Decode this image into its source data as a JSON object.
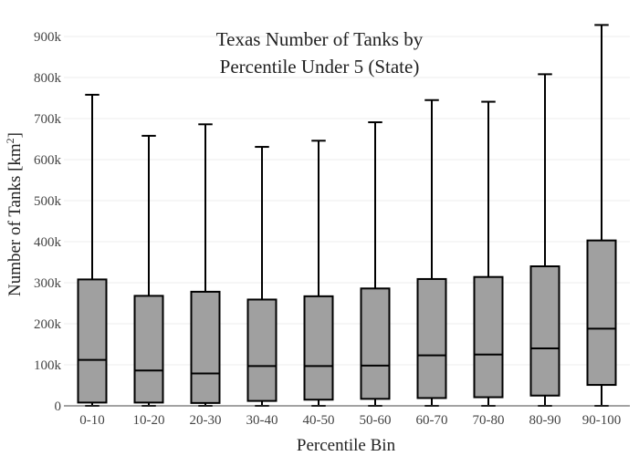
{
  "chart_data": {
    "type": "box",
    "title_lines": [
      "Texas Number of Tanks by",
      "Percentile Under 5 (State)"
    ],
    "xlabel": "Percentile Bin",
    "ylabel_main": "Number of Tanks  [km",
    "ylabel_sup": "2",
    "ylabel_end": "]",
    "ylim": [
      0,
      900000
    ],
    "y_ticks": [
      0,
      100000,
      200000,
      300000,
      400000,
      500000,
      600000,
      700000,
      800000,
      900000
    ],
    "y_tick_labels": [
      "0",
      "100k",
      "200k",
      "300k",
      "400k",
      "500k",
      "600k",
      "700k",
      "800k",
      "900k"
    ],
    "categories": [
      "0-10",
      "10-20",
      "20-30",
      "30-40",
      "40-50",
      "50-60",
      "60-70",
      "70-80",
      "80-90",
      "90-100"
    ],
    "box_color": "#a0a0a0",
    "grid": true,
    "boxes": [
      {
        "min": 0,
        "q1": 8000,
        "median": 112000,
        "q3": 308000,
        "max": 758000
      },
      {
        "min": 0,
        "q1": 8000,
        "median": 86000,
        "q3": 268000,
        "max": 658000
      },
      {
        "min": 0,
        "q1": 7000,
        "median": 79000,
        "q3": 278000,
        "max": 686000
      },
      {
        "min": 0,
        "q1": 12000,
        "median": 97000,
        "q3": 259000,
        "max": 631000
      },
      {
        "min": 0,
        "q1": 15000,
        "median": 97000,
        "q3": 267000,
        "max": 646000
      },
      {
        "min": 0,
        "q1": 17000,
        "median": 98000,
        "q3": 286000,
        "max": 691000
      },
      {
        "min": 0,
        "q1": 19000,
        "median": 123000,
        "q3": 309000,
        "max": 745000
      },
      {
        "min": 0,
        "q1": 21000,
        "median": 125000,
        "q3": 314000,
        "max": 741000
      },
      {
        "min": 0,
        "q1": 25000,
        "median": 140000,
        "q3": 340000,
        "max": 808000
      },
      {
        "min": 0,
        "q1": 51000,
        "median": 188000,
        "q3": 403000,
        "max": 928000
      }
    ]
  }
}
